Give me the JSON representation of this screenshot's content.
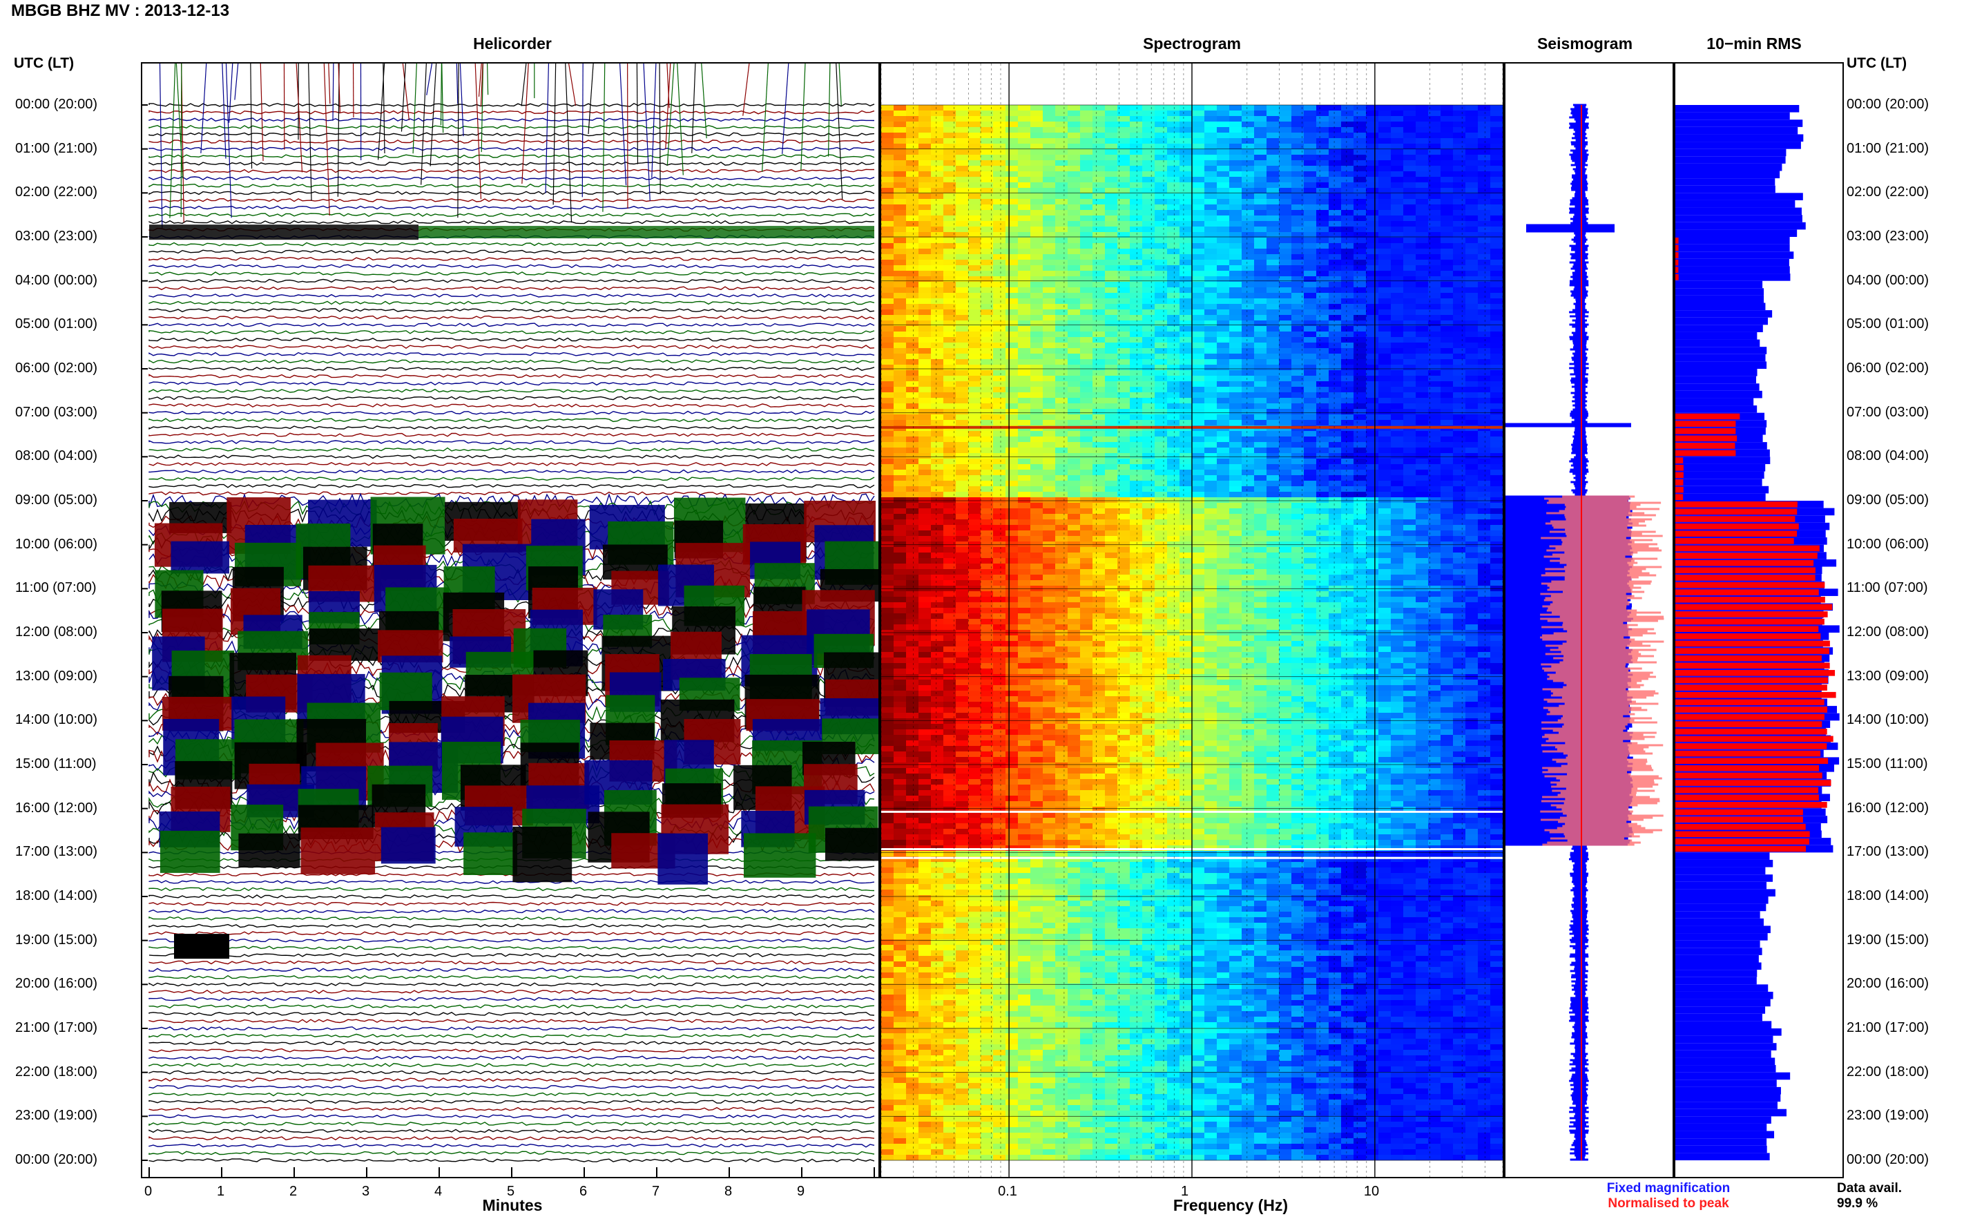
{
  "header": {
    "title": "MBGB BHZ MV : 2013-12-13"
  },
  "panels": {
    "helicorder": "Helicorder",
    "spectrogram": "Spectrogram",
    "seismogram": "Seismogram",
    "rms": "10−min RMS"
  },
  "axis": {
    "utc_left": "UTC (LT)",
    "utc_right": "UTC (LT)",
    "minutes_label": "Minutes",
    "frequency_label": "Frequency (Hz)",
    "minute_ticks": [
      "0",
      "1",
      "2",
      "3",
      "4",
      "5",
      "6",
      "7",
      "8",
      "9"
    ],
    "freq_ticks": [
      "0.1",
      "1",
      "10"
    ]
  },
  "time_labels": [
    "00:00 (20:00)",
    "01:00 (21:00)",
    "02:00 (22:00)",
    "03:00 (23:00)",
    "04:00 (00:00)",
    "05:00 (01:00)",
    "06:00 (02:00)",
    "07:00 (03:00)",
    "08:00 (04:00)",
    "09:00 (05:00)",
    "10:00 (06:00)",
    "11:00 (07:00)",
    "12:00 (08:00)",
    "13:00 (09:00)",
    "14:00 (10:00)",
    "15:00 (11:00)",
    "16:00 (12:00)",
    "17:00 (13:00)",
    "18:00 (14:00)",
    "19:00 (15:00)",
    "20:00 (16:00)",
    "21:00 (17:00)",
    "22:00 (18:00)",
    "23:00 (19:00)",
    "00:00 (20:00)"
  ],
  "legend": {
    "fixed": "Fixed magnification",
    "normalised": "Normalised to peak",
    "fixed_color": "#1a1aff",
    "normalised_color": "#ff2020"
  },
  "availability": {
    "label": "Data avail.",
    "value": "99.9 %"
  },
  "colors": {
    "trace_cycle": [
      "#000000",
      "#8b0000",
      "#00008b",
      "#006400"
    ],
    "rms_fixed": "#0000ff",
    "rms_normalised": "#ff0000"
  },
  "chart_data": {
    "type": "heatmap",
    "title": "MBGB BHZ MV : 2013-12-13",
    "helicorder": {
      "xlabel": "Minutes",
      "xlim": [
        0,
        10
      ],
      "ylabel": "UTC (LT)",
      "hours": [
        0,
        24
      ]
    },
    "spectrogram": {
      "xlabel": "Frequency (Hz)",
      "xscale": "log",
      "xlim": [
        0.02,
        50
      ],
      "colormap": "jet"
    },
    "rms_10min": {
      "hours": [
        0,
        1,
        2,
        3,
        4,
        5,
        6,
        7,
        8,
        9,
        10,
        11,
        12,
        13,
        14,
        15,
        16,
        17,
        18,
        19,
        20,
        21,
        22,
        23
      ],
      "fixed_relative": [
        0.78,
        0.68,
        0.82,
        0.72,
        0.6,
        0.56,
        0.54,
        0.6,
        0.58,
        1.0,
        1.0,
        1.0,
        1.0,
        1.0,
        1.0,
        1.0,
        1.0,
        0.62,
        0.58,
        0.55,
        0.6,
        0.66,
        0.7,
        0.62
      ],
      "normalised_relative": [
        0,
        0,
        0,
        0.02,
        0,
        0,
        0,
        0.4,
        0.05,
        0.78,
        0.92,
        0.96,
        0.98,
        0.99,
        0.98,
        0.96,
        0.85,
        0,
        0,
        0,
        0,
        0,
        0,
        0
      ]
    },
    "events": [
      {
        "time": "02:50",
        "note": ""
      },
      {
        "time": "07:20",
        "note": ""
      },
      {
        "time": "08:55-16:50",
        "note": ""
      }
    ]
  }
}
